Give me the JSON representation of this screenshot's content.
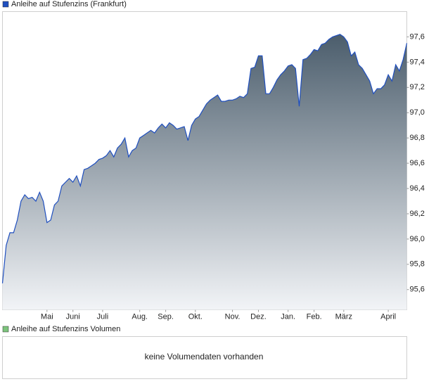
{
  "chart_data": [
    {
      "type": "area",
      "series": [
        {
          "name": "Anleihe auf Stufenzins (Frankfurt)",
          "color": "#1f4fbf",
          "fill_top": "#4b5d6c",
          "fill_bottom": "#f2f4f7",
          "values": [
            95.65,
            95.95,
            96.05,
            96.05,
            96.15,
            96.3,
            96.35,
            96.32,
            96.33,
            96.3,
            96.37,
            96.3,
            96.13,
            96.15,
            96.27,
            96.3,
            96.42,
            96.45,
            96.48,
            96.45,
            96.5,
            96.42,
            96.55,
            96.56,
            96.58,
            96.6,
            96.63,
            96.64,
            96.66,
            96.7,
            96.65,
            96.72,
            96.75,
            96.8,
            96.65,
            96.7,
            96.72,
            96.8,
            96.82,
            96.84,
            96.86,
            96.84,
            96.88,
            96.91,
            96.88,
            96.92,
            96.9,
            96.87,
            96.88,
            96.89,
            96.78,
            96.9,
            96.95,
            96.97,
            97.02,
            97.07,
            97.1,
            97.12,
            97.14,
            97.09,
            97.09,
            97.1,
            97.1,
            97.11,
            97.13,
            97.12,
            97.15,
            97.35,
            97.36,
            97.45,
            97.45,
            97.15,
            97.15,
            97.2,
            97.26,
            97.3,
            97.33,
            97.37,
            97.38,
            97.35,
            97.05,
            97.42,
            97.43,
            97.46,
            97.5,
            97.49,
            97.54,
            97.55,
            97.58,
            97.6,
            97.61,
            97.62,
            97.6,
            97.56,
            97.45,
            97.48,
            97.38,
            97.35,
            97.3,
            97.25,
            97.15,
            97.19,
            97.19,
            97.22,
            97.3,
            97.25,
            97.38,
            97.33,
            97.42,
            97.55
          ]
        }
      ],
      "xlim": [
        0,
        109
      ],
      "xticks": [
        {
          "value": 12,
          "label": "Mai"
        },
        {
          "value": 19,
          "label": "Juni"
        },
        {
          "value": 27,
          "label": "Juli"
        },
        {
          "value": 37,
          "label": "Aug."
        },
        {
          "value": 44,
          "label": "Sep."
        },
        {
          "value": 52,
          "label": "Okt."
        },
        {
          "value": 62,
          "label": "Nov."
        },
        {
          "value": 69,
          "label": "Dez."
        },
        {
          "value": 77,
          "label": "Jan."
        },
        {
          "value": 84,
          "label": "Feb."
        },
        {
          "value": 92,
          "label": "März"
        },
        {
          "value": 104,
          "label": "April"
        }
      ],
      "ylim": [
        95.44,
        97.8
      ],
      "yticks": [
        {
          "value": 95.6,
          "label": "95,6"
        },
        {
          "value": 95.8,
          "label": "95,8"
        },
        {
          "value": 96.0,
          "label": "96,0"
        },
        {
          "value": 96.2,
          "label": "96,2"
        },
        {
          "value": 96.4,
          "label": "96,4"
        },
        {
          "value": 96.6,
          "label": "96,6"
        },
        {
          "value": 96.8,
          "label": "96,8"
        },
        {
          "value": 97.0,
          "label": "97,0"
        },
        {
          "value": 97.2,
          "label": "97,2"
        },
        {
          "value": 97.4,
          "label": "97,4"
        },
        {
          "value": 97.6,
          "label": "97,6"
        }
      ],
      "grid": false
    },
    {
      "type": "bar",
      "series": [
        {
          "name": "Anleihe auf Stufenzins Volumen",
          "color": "#7cc47c",
          "values": []
        }
      ],
      "annotation": "keine Volumendaten vorhanden"
    }
  ]
}
